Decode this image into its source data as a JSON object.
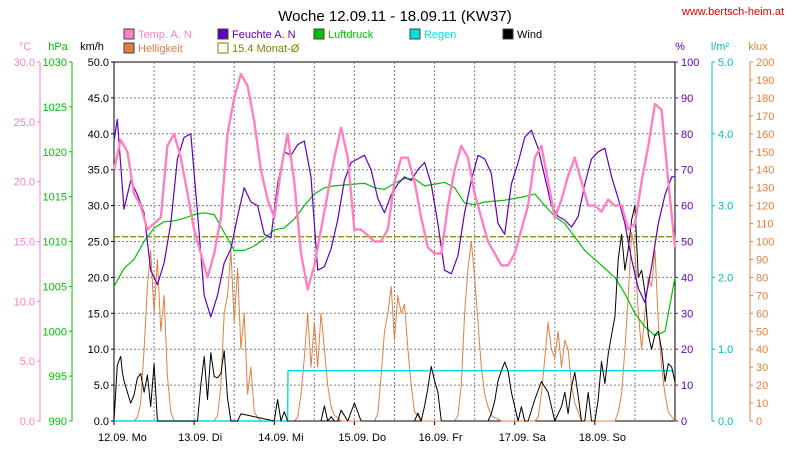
{
  "site_credit": "www.bertsch-heim.at",
  "chart_data": {
    "type": "line",
    "title": "Woche 12.09.11 - 18.09.11 (KW37)",
    "x_ticks": [
      "12.09.  Mo",
      "13.09.  Di",
      "14.09.  Mi",
      "15.09.  Do",
      "16.09.  Fr",
      "17.09.  Sa",
      "18.09.  So"
    ],
    "x_range_hours": [
      0,
      168
    ],
    "axes": [
      {
        "id": "temp",
        "unit": "°C",
        "color": "#ff80c0",
        "range": [
          0,
          30
        ],
        "ticks": [
          "0.0",
          "5.0",
          "10.0",
          "15.0",
          "20.0",
          "25.0",
          "30.0"
        ]
      },
      {
        "id": "press",
        "unit": "hPa",
        "color": "#00c000",
        "range": [
          990,
          1030
        ],
        "ticks": [
          "990",
          "995",
          "1000",
          "1005",
          "1010",
          "1015",
          "1020",
          "1025",
          "1030"
        ]
      },
      {
        "id": "wind",
        "unit": "km/h",
        "color": "#000000",
        "range": [
          0,
          50
        ],
        "ticks": [
          "0.0",
          "5.0",
          "10.0",
          "15.0",
          "20.0",
          "25.0",
          "30.0",
          "35.0",
          "40.0",
          "45.0",
          "50.0"
        ]
      },
      {
        "id": "hum",
        "unit": "%",
        "color": "#6000c0",
        "range": [
          0,
          100
        ],
        "ticks": [
          "0",
          "10",
          "20",
          "30",
          "40",
          "50",
          "60",
          "70",
          "80",
          "90",
          "100"
        ]
      },
      {
        "id": "rain",
        "unit": "l/m²",
        "color": "#00c0c0",
        "range": [
          0,
          5
        ],
        "ticks": [
          "0.0",
          "1.0",
          "2.0",
          "3.0",
          "4.0",
          "5.0"
        ]
      },
      {
        "id": "light",
        "unit": "klux",
        "color": "#e08040",
        "range": [
          0,
          200
        ],
        "ticks": [
          "0",
          "10",
          "20",
          "30",
          "40",
          "50",
          "60",
          "70",
          "80",
          "90",
          "100",
          "110",
          "120",
          "130",
          "140",
          "150",
          "160",
          "170",
          "180",
          "190",
          "200"
        ]
      }
    ],
    "legend": [
      {
        "label": "Temp. A. N",
        "color": "#ff80c0",
        "style": "box"
      },
      {
        "label": "Helligkeit",
        "color": "#e08040",
        "style": "box"
      },
      {
        "label": "Feuchte A. N",
        "color": "#6000c0",
        "style": "box"
      },
      {
        "label": "15.4 Monat-Ø",
        "color": "#808000",
        "style": "outline"
      },
      {
        "label": "Luftdruck",
        "color": "#00c000",
        "style": "box"
      },
      {
        "label": "Regen",
        "color": "#00e0e0",
        "style": "box"
      },
      {
        "label": "Wind",
        "color": "#000000",
        "style": "box"
      }
    ],
    "monthly_mean_temp": 15.4,
    "series": [
      {
        "name": "Temp. A. N",
        "axis": "temp",
        "color": "#ff80c0",
        "width": 2.4,
        "x": [
          0,
          2,
          4,
          6,
          8,
          10,
          12,
          14,
          16,
          18,
          20,
          22,
          24,
          26,
          28,
          30,
          32,
          34,
          36,
          38,
          40,
          42,
          44,
          46,
          48,
          50,
          52,
          54,
          56,
          58,
          60,
          62,
          64,
          66,
          68,
          70,
          72,
          74,
          76,
          78,
          80,
          82,
          84,
          86,
          88,
          90,
          92,
          94,
          96,
          98,
          100,
          102,
          104,
          106,
          108,
          110,
          112,
          114,
          116,
          118,
          120,
          122,
          124,
          126,
          128,
          130,
          132,
          134,
          136,
          138,
          140,
          142,
          144,
          146,
          148,
          150,
          152,
          154,
          156,
          158,
          160,
          162,
          164,
          166,
          168
        ],
        "y": [
          21,
          23.5,
          22.5,
          19,
          18,
          16,
          16.5,
          17,
          23,
          24,
          22,
          19,
          16,
          14,
          12,
          14,
          17,
          24,
          27,
          29,
          28,
          25,
          21,
          18.5,
          17,
          21,
          24,
          20,
          14,
          11,
          13,
          16,
          19,
          22,
          24.5,
          22,
          16,
          16,
          15.5,
          15,
          15,
          16,
          20,
          22,
          22,
          20,
          17,
          14.5,
          14,
          14,
          18,
          21,
          23,
          22,
          19,
          17,
          15,
          14,
          13,
          13,
          14,
          16,
          18,
          22,
          23,
          20,
          17,
          18.5,
          20.5,
          22,
          20,
          18,
          18,
          17.5,
          18.5,
          18,
          18,
          16,
          16.5,
          20,
          23,
          26.5,
          26,
          20,
          14.5
        ]
      },
      {
        "name": "Feuchte A. N",
        "axis": "hum",
        "color": "#6000c0",
        "width": 1.2,
        "x": [
          0,
          1,
          3,
          5,
          7,
          9,
          11,
          13,
          15,
          17,
          19,
          21,
          23,
          25,
          27,
          29,
          31,
          33,
          35,
          37,
          39,
          41,
          43,
          45,
          47,
          49,
          51,
          53,
          55,
          57,
          59,
          61,
          63,
          65,
          67,
          69,
          71,
          73,
          75,
          77,
          79,
          81,
          83,
          85,
          87,
          89,
          91,
          93,
          95,
          97,
          99,
          101,
          103,
          105,
          107,
          109,
          111,
          113,
          115,
          117,
          119,
          121,
          123,
          125,
          127,
          129,
          131,
          133,
          135,
          137,
          139,
          141,
          143,
          145,
          147,
          149,
          151,
          153,
          155,
          157,
          159,
          161,
          163,
          165,
          167,
          168
        ],
        "y": [
          78,
          84,
          59,
          67,
          63,
          58,
          42,
          38,
          44,
          55,
          73,
          79,
          80,
          58,
          35,
          29,
          35,
          44,
          48,
          57,
          65,
          61,
          60,
          52,
          51,
          66,
          75,
          74,
          77,
          78,
          68,
          42,
          43,
          48,
          56,
          67,
          72,
          73,
          74,
          70,
          62,
          58,
          63,
          66,
          68,
          67,
          70,
          72,
          66,
          55,
          42,
          41,
          46,
          58,
          67,
          74,
          73,
          69,
          55,
          52,
          66,
          72,
          79,
          81,
          76,
          68,
          60,
          57,
          56,
          54,
          57,
          66,
          73,
          75,
          76,
          68,
          62,
          55,
          45,
          37,
          33,
          43,
          55,
          63,
          68,
          68
        ]
      },
      {
        "name": "Luftdruck",
        "axis": "press",
        "color": "#00c000",
        "width": 1.2,
        "x": [
          0,
          3,
          6,
          9,
          12,
          15,
          18,
          21,
          24,
          27,
          30,
          33,
          36,
          39,
          42,
          45,
          48,
          51,
          54,
          57,
          60,
          63,
          66,
          69,
          72,
          75,
          78,
          81,
          84,
          87,
          90,
          93,
          96,
          99,
          102,
          105,
          108,
          111,
          114,
          117,
          120,
          123,
          126,
          129,
          132,
          135,
          138,
          141,
          144,
          147,
          150,
          153,
          156,
          159,
          162,
          165,
          168
        ],
        "y": [
          1005,
          1007,
          1008,
          1010,
          1011.5,
          1012.2,
          1012.3,
          1012.6,
          1013,
          1013.2,
          1013,
          1011,
          1009,
          1009,
          1009.5,
          1010.3,
          1011.3,
          1011.5,
          1012.5,
          1014,
          1015.3,
          1016,
          1016.2,
          1016.3,
          1016.4,
          1016.5,
          1016,
          1015.8,
          1016.5,
          1017,
          1017,
          1016.2,
          1016.4,
          1016.6,
          1016,
          1014.3,
          1014.1,
          1014.4,
          1014.5,
          1014.6,
          1014.8,
          1015,
          1015.3,
          1014,
          1012.8,
          1012,
          1010.5,
          1009,
          1008,
          1007,
          1006,
          1004.2,
          1002,
          1000.5,
          999.5,
          1000,
          1006
        ]
      },
      {
        "name": "Regen",
        "axis": "rain",
        "color": "#00e0e0",
        "width": 1.4,
        "x": [
          0,
          52,
          52.1,
          168
        ],
        "y": [
          0,
          0,
          0.7,
          0.7
        ]
      },
      {
        "name": "Wind",
        "axis": "wind",
        "color": "#000000",
        "width": 1,
        "x": [
          0,
          1,
          2,
          2.5,
          3,
          4,
          5,
          6,
          7,
          8,
          9,
          10,
          11,
          12,
          13,
          24,
          25,
          26,
          27,
          28,
          29,
          30,
          31,
          32,
          33,
          34,
          35,
          36,
          37,
          38,
          48,
          49,
          50,
          51,
          52,
          62,
          63,
          64,
          65,
          66,
          67,
          68,
          70,
          72,
          74,
          76,
          90,
          91,
          92,
          93,
          94,
          95,
          96,
          97,
          98,
          112,
          113,
          114,
          115,
          116,
          117,
          118,
          119,
          120,
          121,
          122,
          123,
          124,
          126,
          128,
          130,
          132,
          134,
          135,
          136,
          137,
          138,
          139,
          140,
          141,
          142,
          143,
          144,
          145,
          146,
          147,
          148,
          149,
          150,
          151,
          152,
          153,
          154,
          155,
          156,
          157,
          158,
          159,
          160,
          161,
          162,
          163,
          164,
          165,
          166,
          167,
          168
        ],
        "y": [
          0,
          7.8,
          9,
          6.8,
          5.6,
          4,
          2.5,
          3.6,
          6,
          6.6,
          4,
          6.4,
          2,
          8,
          0,
          0,
          0,
          5,
          9,
          3,
          9.5,
          6.2,
          6,
          6.6,
          9.8,
          3.2,
          0,
          0,
          0,
          1,
          0,
          3,
          0,
          1.3,
          0,
          0,
          2.1,
          0,
          0.6,
          0,
          0,
          1.5,
          0,
          2.5,
          0,
          0,
          0,
          1.1,
          0,
          2.1,
          4.6,
          7.6,
          5.6,
          4,
          0,
          0,
          1,
          2.8,
          5.6,
          7,
          8.2,
          7,
          4,
          2,
          0,
          2,
          0,
          0,
          3,
          5.5,
          4,
          0,
          2,
          4,
          1,
          4.7,
          6.8,
          3.5,
          0,
          0,
          4,
          0,
          0,
          3,
          8.3,
          5.2,
          9.3,
          12,
          14.5,
          22.5,
          26,
          21,
          24,
          28,
          30,
          20,
          21,
          18,
          12,
          10,
          12,
          12.5,
          10,
          5.5,
          8,
          7.5,
          5.4
        ]
      },
      {
        "name": "Helligkeit",
        "axis": "light",
        "color": "#e08040",
        "width": 1,
        "x": [
          0,
          6,
          7,
          8,
          9,
          10,
          11,
          12,
          13,
          14,
          15,
          16,
          17,
          18,
          24,
          30,
          31,
          32,
          33,
          34,
          35,
          36,
          37,
          38,
          39,
          40,
          41,
          42,
          43,
          44,
          48,
          54,
          55,
          56,
          57,
          58,
          59,
          60,
          61,
          62,
          63,
          64,
          65,
          66,
          67,
          68,
          72,
          78,
          79,
          80,
          81,
          82,
          83,
          84,
          85,
          86,
          87,
          88,
          89,
          90,
          91,
          92,
          96,
          102,
          103,
          104,
          105,
          106,
          107,
          108,
          109,
          110,
          111,
          112,
          113,
          114,
          115,
          116,
          120,
          126,
          127,
          128,
          129,
          130,
          131,
          132,
          133,
          134,
          135,
          136,
          137,
          138,
          139,
          140,
          144,
          150,
          151,
          152,
          153,
          154,
          155,
          156,
          157,
          158,
          159,
          160,
          161,
          162,
          163,
          164,
          165,
          166,
          168
        ],
        "y": [
          0,
          0,
          2,
          10,
          40,
          75,
          95,
          60,
          90,
          50,
          70,
          25,
          5,
          0,
          0,
          0,
          3,
          20,
          60,
          70,
          95,
          55,
          85,
          40,
          60,
          15,
          30,
          5,
          2,
          0,
          0,
          0,
          2,
          15,
          35,
          60,
          30,
          55,
          30,
          60,
          40,
          20,
          8,
          3,
          2,
          0,
          0,
          0,
          4,
          25,
          50,
          60,
          75,
          45,
          70,
          60,
          65,
          40,
          20,
          5,
          3,
          0,
          0,
          0,
          3,
          20,
          60,
          85,
          100,
          80,
          55,
          30,
          15,
          8,
          3,
          2,
          1,
          0,
          0,
          0,
          2,
          15,
          35,
          55,
          40,
          35,
          50,
          30,
          45,
          40,
          20,
          10,
          5,
          0,
          0,
          0,
          5,
          15,
          40,
          70,
          105,
          95,
          60,
          40,
          60,
          80,
          75,
          95,
          55,
          30,
          15,
          5,
          0
        ]
      }
    ]
  }
}
